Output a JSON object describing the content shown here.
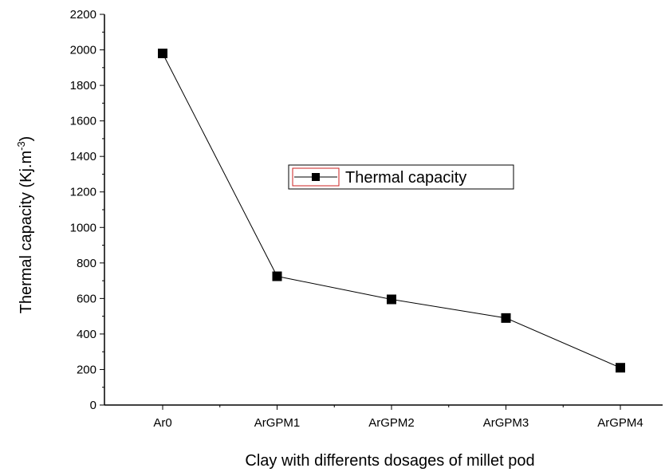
{
  "chart_data": {
    "type": "line",
    "title": "",
    "xlabel": "Clay with differents dosages of millet pod",
    "ylabel": "Thermal capacity (Kj.m",
    "ylabel_sup": "-3",
    "ylabel_end": ")",
    "categories": [
      "Ar0",
      "ArGPM1",
      "ArGPM2",
      "ArGPM3",
      "ArGPM4"
    ],
    "series": [
      {
        "name": "Thermal capacity",
        "values": [
          1980,
          725,
          595,
          490,
          210
        ],
        "color": "#000000",
        "marker": "square"
      }
    ],
    "ylim": [
      0,
      2200
    ],
    "yticks": [
      "0",
      "200",
      "400",
      "600",
      "800",
      "1000",
      "1200",
      "1400",
      "1600",
      "1800",
      "2000",
      "2200"
    ],
    "grid": false,
    "legend_position": "center-right",
    "legend_border_color": "#cc2222"
  }
}
